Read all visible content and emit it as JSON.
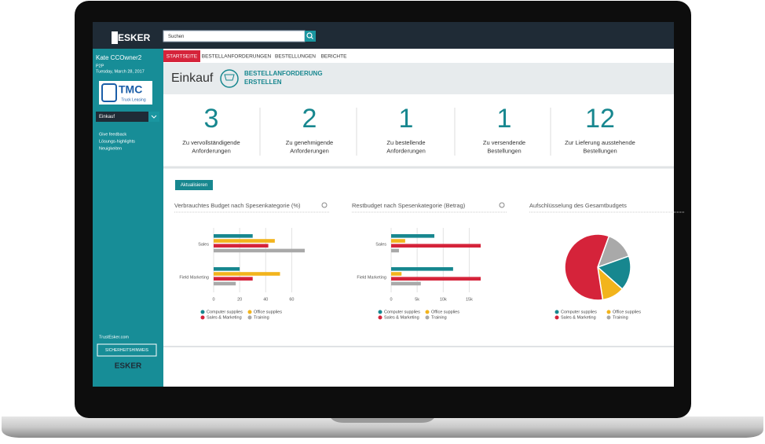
{
  "header": {
    "logo": "ESKER",
    "search_placeholder": "Suchen"
  },
  "sidebar": {
    "user": "Kate CCOwner2",
    "role": "P2P",
    "date": "Tuesday, March 28, 2017",
    "company_logo": {
      "name": "TMC",
      "tagline": "Truck Leasing"
    },
    "dropdown": "Einkauf",
    "links": [
      "Give feedback",
      "Lösungs-highlights",
      "Neuigkeiten"
    ],
    "footer_link": "TrustEsker.com",
    "button": "SICHERHEITSHINWEIS",
    "footer_logo": "ESKER"
  },
  "tabs": [
    "STARTSEITE",
    "BESTELLANFORDERUNGEN",
    "BESTELLUNGEN",
    "BERICHTE"
  ],
  "active_tab": 0,
  "page": {
    "title": "Einkauf",
    "action": [
      "BESTELLANFORDERUNG",
      "ERSTELLEN"
    ]
  },
  "kpis": [
    {
      "value": 3,
      "label": [
        "Zu vervollständigende",
        "Anforderungen"
      ]
    },
    {
      "value": 2,
      "label": [
        "Zu genehmigende",
        "Anforderungen"
      ]
    },
    {
      "value": 1,
      "label": [
        "Zu bestellende",
        "Anforderungen"
      ]
    },
    {
      "value": 1,
      "label": [
        "Zu versendende",
        "Bestellungen"
      ]
    },
    {
      "value": 12,
      "label": [
        "Zur Lieferung ausstehende",
        "Bestellungen"
      ]
    }
  ],
  "refresh_button": "Aktualisieren",
  "charts": [
    {
      "type": "bar",
      "title": "Verbrauchtes Budget nach Spesenkategorie (%)",
      "categories": [
        "Sales",
        "Field Marketing"
      ],
      "series": [
        {
          "name": "Computer supplies",
          "color": "#17878f",
          "values": [
            30,
            20
          ]
        },
        {
          "name": "Office supplies",
          "color": "#f2b41c",
          "values": [
            47,
            51
          ]
        },
        {
          "name": "Sales & Marketing",
          "color": "#d5233a",
          "values": [
            42,
            30
          ]
        },
        {
          "name": "Training",
          "color": "#a9a9a9",
          "values": [
            70,
            17
          ]
        }
      ],
      "xlim": [
        0,
        70
      ],
      "xticks": [
        0,
        20,
        40,
        60
      ]
    },
    {
      "type": "bar",
      "title": "Restbudget nach Spesenkategorie (Betrag)",
      "categories": [
        "Sales",
        "Field Marketing"
      ],
      "series": [
        {
          "name": "Computer supplies",
          "color": "#17878f",
          "values": [
            8300,
            11900
          ]
        },
        {
          "name": "Office supplies",
          "color": "#f2b41c",
          "values": [
            2700,
            2000
          ]
        },
        {
          "name": "Sales & Marketing",
          "color": "#d5233a",
          "values": [
            17200,
            17200
          ]
        },
        {
          "name": "Training",
          "color": "#a9a9a9",
          "values": [
            1500,
            5700
          ]
        }
      ],
      "xlim": [
        0,
        17500
      ],
      "xticks": [
        0,
        {
          "value": 5000,
          "label": "5k"
        },
        {
          "value": 10000,
          "label": "10k"
        },
        {
          "value": 15000,
          "label": "15k"
        }
      ]
    },
    {
      "type": "pie",
      "title": "Aufschlüsselung des Gesamtbudgets",
      "categories": [
        "Computer supplies",
        "Office supplies",
        "Sales & Marketing",
        "Training"
      ],
      "colors": [
        "#17878f",
        "#f2b41c",
        "#d5233a",
        "#a9a9a9"
      ],
      "values": [
        17,
        11,
        58,
        14
      ]
    }
  ]
}
